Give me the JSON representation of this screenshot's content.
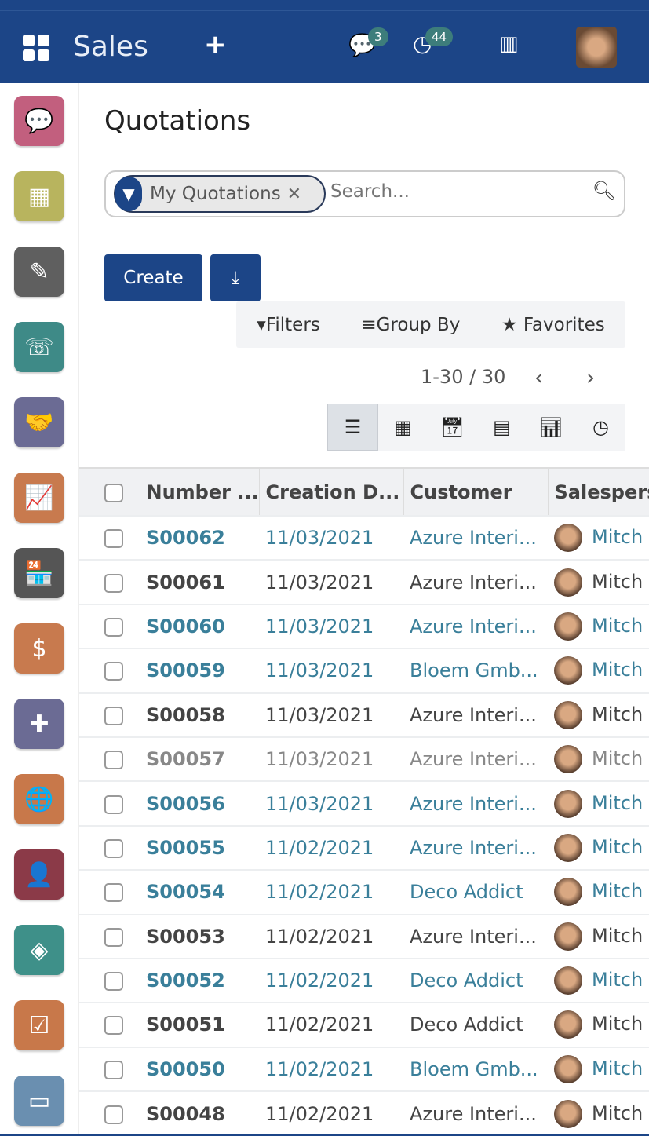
{
  "header": {
    "app_title": "Sales",
    "messages_count": "3",
    "activities_count": "44"
  },
  "sidebar": {
    "apps": [
      {
        "icon": "discuss-icon",
        "color": "#c25f7e",
        "glyph": "💬"
      },
      {
        "icon": "calendar-icon",
        "color": "#b8b45e",
        "glyph": "▦"
      },
      {
        "icon": "notes-icon",
        "color": "#5f5f5f",
        "glyph": "✎"
      },
      {
        "icon": "contacts-icon",
        "color": "#3e8a87",
        "glyph": "☏"
      },
      {
        "icon": "crm-handshake-icon",
        "color": "#6b6b94",
        "glyph": "🤝"
      },
      {
        "icon": "sales-chart-icon",
        "color": "#c87a4e",
        "glyph": "📈"
      },
      {
        "icon": "shop-icon",
        "color": "#555555",
        "glyph": "🏪"
      },
      {
        "icon": "invoicing-icon",
        "color": "#c87a4e",
        "glyph": "$"
      },
      {
        "icon": "apps-puzzle-icon",
        "color": "#6b6b94",
        "glyph": "✚"
      },
      {
        "icon": "website-globe-icon",
        "color": "#c8784a",
        "glyph": "🌐"
      },
      {
        "icon": "elearning-icon",
        "color": "#8b3a48",
        "glyph": "👤"
      },
      {
        "icon": "events-ticket-icon",
        "color": "#3e9089",
        "glyph": "◈"
      },
      {
        "icon": "surveys-icon",
        "color": "#c8784a",
        "glyph": "☑"
      },
      {
        "icon": "payment-card-icon",
        "color": "#6a8fb0",
        "glyph": "▭"
      }
    ]
  },
  "page": {
    "title": "Quotations"
  },
  "search": {
    "facet_label": "My Quotations",
    "placeholder": "Search..."
  },
  "toolbar": {
    "create_label": "Create",
    "filters_label": "Filters",
    "groupby_label": "Group By",
    "favorites_label": "Favorites"
  },
  "pager": {
    "value": "1-30 / 30"
  },
  "table": {
    "columns": [
      "Number ...",
      "Creation D...",
      "Customer",
      "Salespers"
    ],
    "rows": [
      {
        "number": "S00062",
        "date": "11/03/2021",
        "customer": "Azure Interi...",
        "salesperson": "Mitch",
        "style": "sent"
      },
      {
        "number": "S00061",
        "date": "11/03/2021",
        "customer": "Azure Interi...",
        "salesperson": "Mitch",
        "style": "draft"
      },
      {
        "number": "S00060",
        "date": "11/03/2021",
        "customer": "Azure Interi...",
        "salesperson": "Mitch",
        "style": "sent"
      },
      {
        "number": "S00059",
        "date": "11/03/2021",
        "customer": "Bloem Gmb...",
        "salesperson": "Mitch",
        "style": "sent"
      },
      {
        "number": "S00058",
        "date": "11/03/2021",
        "customer": "Azure Interi...",
        "salesperson": "Mitch",
        "style": "draft"
      },
      {
        "number": "S00057",
        "date": "11/03/2021",
        "customer": "Azure Interi...",
        "salesperson": "Mitch",
        "style": "dim"
      },
      {
        "number": "S00056",
        "date": "11/03/2021",
        "customer": "Azure Interi...",
        "salesperson": "Mitch",
        "style": "sent"
      },
      {
        "number": "S00055",
        "date": "11/02/2021",
        "customer": "Azure Interi...",
        "salesperson": "Mitch",
        "style": "sent"
      },
      {
        "number": "S00054",
        "date": "11/02/2021",
        "customer": "Deco Addict",
        "salesperson": "Mitch",
        "style": "sent"
      },
      {
        "number": "S00053",
        "date": "11/02/2021",
        "customer": "Azure Interi...",
        "salesperson": "Mitch",
        "style": "draft"
      },
      {
        "number": "S00052",
        "date": "11/02/2021",
        "customer": "Deco Addict",
        "salesperson": "Mitch",
        "style": "sent"
      },
      {
        "number": "S00051",
        "date": "11/02/2021",
        "customer": "Deco Addict",
        "salesperson": "Mitch",
        "style": "draft"
      },
      {
        "number": "S00050",
        "date": "11/02/2021",
        "customer": "Bloem Gmb...",
        "salesperson": "Mitch",
        "style": "sent"
      },
      {
        "number": "S00048",
        "date": "11/02/2021",
        "customer": "Azure Interi...",
        "salesperson": "Mitch",
        "style": "draft"
      }
    ]
  },
  "colors": {
    "brand": "#1c4587",
    "link": "#3a7f9a",
    "badge": "#3d7d7b"
  }
}
